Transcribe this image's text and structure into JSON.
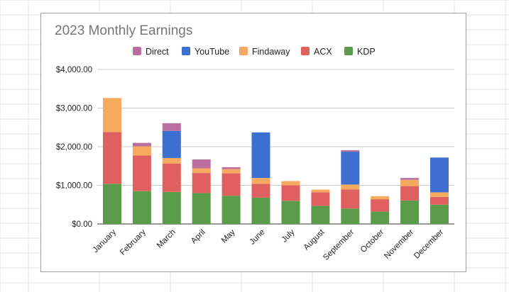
{
  "chart_data": {
    "type": "bar",
    "stacked": true,
    "title": "2023 Monthly Earnings",
    "xlabel": "",
    "ylabel": "",
    "ylim": [
      0,
      4000
    ],
    "y_ticks": [
      "$0.00",
      "$1,000.00",
      "$2,000.00",
      "$3,000.00",
      "$4,000.00"
    ],
    "y_tick_values": [
      0,
      1000,
      2000,
      3000,
      4000
    ],
    "grid": true,
    "legend_position": "top",
    "categories": [
      "January",
      "February",
      "March",
      "April",
      "May",
      "June",
      "July",
      "August",
      "September",
      "October",
      "November",
      "December"
    ],
    "series": [
      {
        "name": "KDP",
        "color": "#5b9c4a",
        "values": [
          1040,
          850,
          830,
          800,
          730,
          680,
          600,
          470,
          400,
          320,
          610,
          500
        ]
      },
      {
        "name": "ACX",
        "color": "#e06060",
        "values": [
          1340,
          920,
          730,
          520,
          580,
          360,
          400,
          350,
          490,
          320,
          370,
          200
        ]
      },
      {
        "name": "Findaway",
        "color": "#f6aa60",
        "values": [
          880,
          240,
          150,
          120,
          110,
          150,
          110,
          70,
          130,
          80,
          160,
          120
        ]
      },
      {
        "name": "YouTube",
        "color": "#3c6fd0",
        "values": [
          0,
          0,
          700,
          0,
          0,
          1180,
          0,
          0,
          850,
          0,
          0,
          900
        ]
      },
      {
        "name": "Direct",
        "color": "#bb6fa0",
        "values": [
          0,
          90,
          200,
          230,
          50,
          0,
          0,
          0,
          40,
          0,
          50,
          0
        ]
      }
    ],
    "legend_order": [
      "Direct",
      "YouTube",
      "Findaway",
      "ACX",
      "KDP"
    ]
  }
}
